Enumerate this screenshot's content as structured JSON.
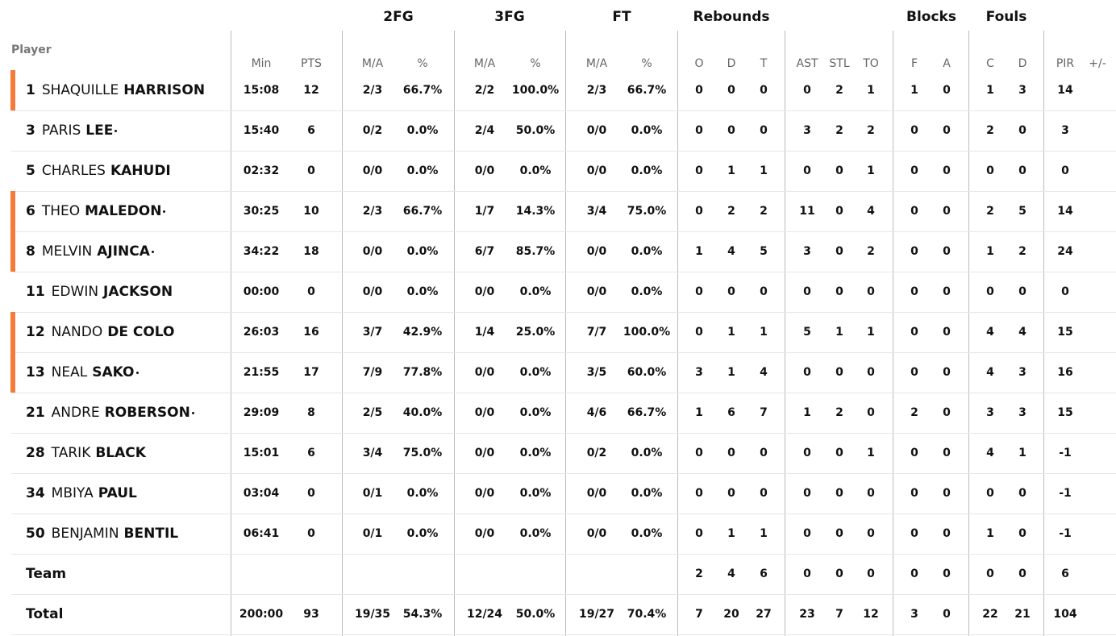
{
  "player_header": "Player",
  "groups": [
    "2FG",
    "3FG",
    "FT",
    "Rebounds",
    "Blocks",
    "Fouls"
  ],
  "columns": [
    "Min",
    "PTS",
    "M/A",
    "%",
    "M/A",
    "%",
    "M/A",
    "%",
    "O",
    "D",
    "T",
    "AST",
    "STL",
    "TO",
    "F",
    "A",
    "C",
    "D",
    "PIR",
    "+/-"
  ],
  "rows": [
    {
      "number": "1",
      "first": "SHAQUILLE",
      "last": "HARRISON",
      "starter": false,
      "highlight": true,
      "stats": [
        "15:08",
        "12",
        "2/3",
        "66.7%",
        "2/2",
        "100.0%",
        "2/3",
        "66.7%",
        "0",
        "0",
        "0",
        "0",
        "2",
        "1",
        "1",
        "0",
        "1",
        "3",
        "14",
        null
      ]
    },
    {
      "number": "3",
      "first": "PARIS",
      "last": "LEE",
      "starter": true,
      "highlight": false,
      "stats": [
        "15:40",
        "6",
        "0/2",
        "0.0%",
        "2/4",
        "50.0%",
        "0/0",
        "0.0%",
        "0",
        "0",
        "0",
        "3",
        "2",
        "2",
        "0",
        "0",
        "2",
        "0",
        "3",
        null
      ]
    },
    {
      "number": "5",
      "first": "CHARLES",
      "last": "KAHUDI",
      "starter": false,
      "highlight": false,
      "stats": [
        "02:32",
        "0",
        "0/0",
        "0.0%",
        "0/0",
        "0.0%",
        "0/0",
        "0.0%",
        "0",
        "1",
        "1",
        "0",
        "0",
        "1",
        "0",
        "0",
        "0",
        "0",
        "0",
        null
      ]
    },
    {
      "number": "6",
      "first": "THEO",
      "last": "MALEDON",
      "starter": true,
      "highlight": true,
      "stats": [
        "30:25",
        "10",
        "2/3",
        "66.7%",
        "1/7",
        "14.3%",
        "3/4",
        "75.0%",
        "0",
        "2",
        "2",
        "11",
        "0",
        "4",
        "0",
        "0",
        "2",
        "5",
        "14",
        null
      ]
    },
    {
      "number": "8",
      "first": "MELVIN",
      "last": "AJINCA",
      "starter": true,
      "highlight": true,
      "stats": [
        "34:22",
        "18",
        "0/0",
        "0.0%",
        "6/7",
        "85.7%",
        "0/0",
        "0.0%",
        "1",
        "4",
        "5",
        "3",
        "0",
        "2",
        "0",
        "0",
        "1",
        "2",
        "24",
        null
      ]
    },
    {
      "number": "11",
      "first": "EDWIN",
      "last": "JACKSON",
      "starter": false,
      "highlight": false,
      "stats": [
        "00:00",
        "0",
        "0/0",
        "0.0%",
        "0/0",
        "0.0%",
        "0/0",
        "0.0%",
        "0",
        "0",
        "0",
        "0",
        "0",
        "0",
        "0",
        "0",
        "0",
        "0",
        "0",
        null
      ]
    },
    {
      "number": "12",
      "first": "NANDO",
      "last": "DE COLO",
      "starter": false,
      "highlight": true,
      "stats": [
        "26:03",
        "16",
        "3/7",
        "42.9%",
        "1/4",
        "25.0%",
        "7/7",
        "100.0%",
        "0",
        "1",
        "1",
        "5",
        "1",
        "1",
        "0",
        "0",
        "4",
        "4",
        "15",
        null
      ]
    },
    {
      "number": "13",
      "first": "NEAL",
      "last": "SAKO",
      "starter": true,
      "highlight": true,
      "stats": [
        "21:55",
        "17",
        "7/9",
        "77.8%",
        "0/0",
        "0.0%",
        "3/5",
        "60.0%",
        "3",
        "1",
        "4",
        "0",
        "0",
        "0",
        "0",
        "0",
        "4",
        "3",
        "16",
        null
      ]
    },
    {
      "number": "21",
      "first": "ANDRE",
      "last": "ROBERSON",
      "starter": true,
      "highlight": false,
      "stats": [
        "29:09",
        "8",
        "2/5",
        "40.0%",
        "0/0",
        "0.0%",
        "4/6",
        "66.7%",
        "1",
        "6",
        "7",
        "1",
        "2",
        "0",
        "2",
        "0",
        "3",
        "3",
        "15",
        null
      ]
    },
    {
      "number": "28",
      "first": "TARIK",
      "last": "BLACK",
      "starter": false,
      "highlight": false,
      "stats": [
        "15:01",
        "6",
        "3/4",
        "75.0%",
        "0/0",
        "0.0%",
        "0/2",
        "0.0%",
        "0",
        "0",
        "0",
        "0",
        "0",
        "1",
        "0",
        "0",
        "4",
        "1",
        "-1",
        null
      ]
    },
    {
      "number": "34",
      "first": "MBIYA",
      "last": "PAUL",
      "starter": false,
      "highlight": false,
      "stats": [
        "03:04",
        "0",
        "0/1",
        "0.0%",
        "0/0",
        "0.0%",
        "0/0",
        "0.0%",
        "0",
        "0",
        "0",
        "0",
        "0",
        "0",
        "0",
        "0",
        "0",
        "0",
        "-1",
        null
      ]
    },
    {
      "number": "50",
      "first": "BENJAMIN",
      "last": "BENTIL",
      "starter": false,
      "highlight": false,
      "stats": [
        "06:41",
        "0",
        "0/1",
        "0.0%",
        "0/0",
        "0.0%",
        "0/0",
        "0.0%",
        "0",
        "1",
        "1",
        "0",
        "0",
        "0",
        "0",
        "0",
        "1",
        "0",
        "-1",
        null
      ]
    },
    {
      "label": "Team",
      "stats": [
        null,
        null,
        null,
        null,
        null,
        null,
        null,
        null,
        "2",
        "4",
        "6",
        "0",
        "0",
        "0",
        "0",
        "0",
        "0",
        "0",
        "6",
        null
      ]
    },
    {
      "label": "Total",
      "stats": [
        "200:00",
        "93",
        "19/35",
        "54.3%",
        "12/24",
        "50.0%",
        "19/27",
        "70.4%",
        "7",
        "20",
        "27",
        "23",
        "7",
        "12",
        "3",
        "0",
        "22",
        "21",
        "104",
        null
      ]
    }
  ]
}
